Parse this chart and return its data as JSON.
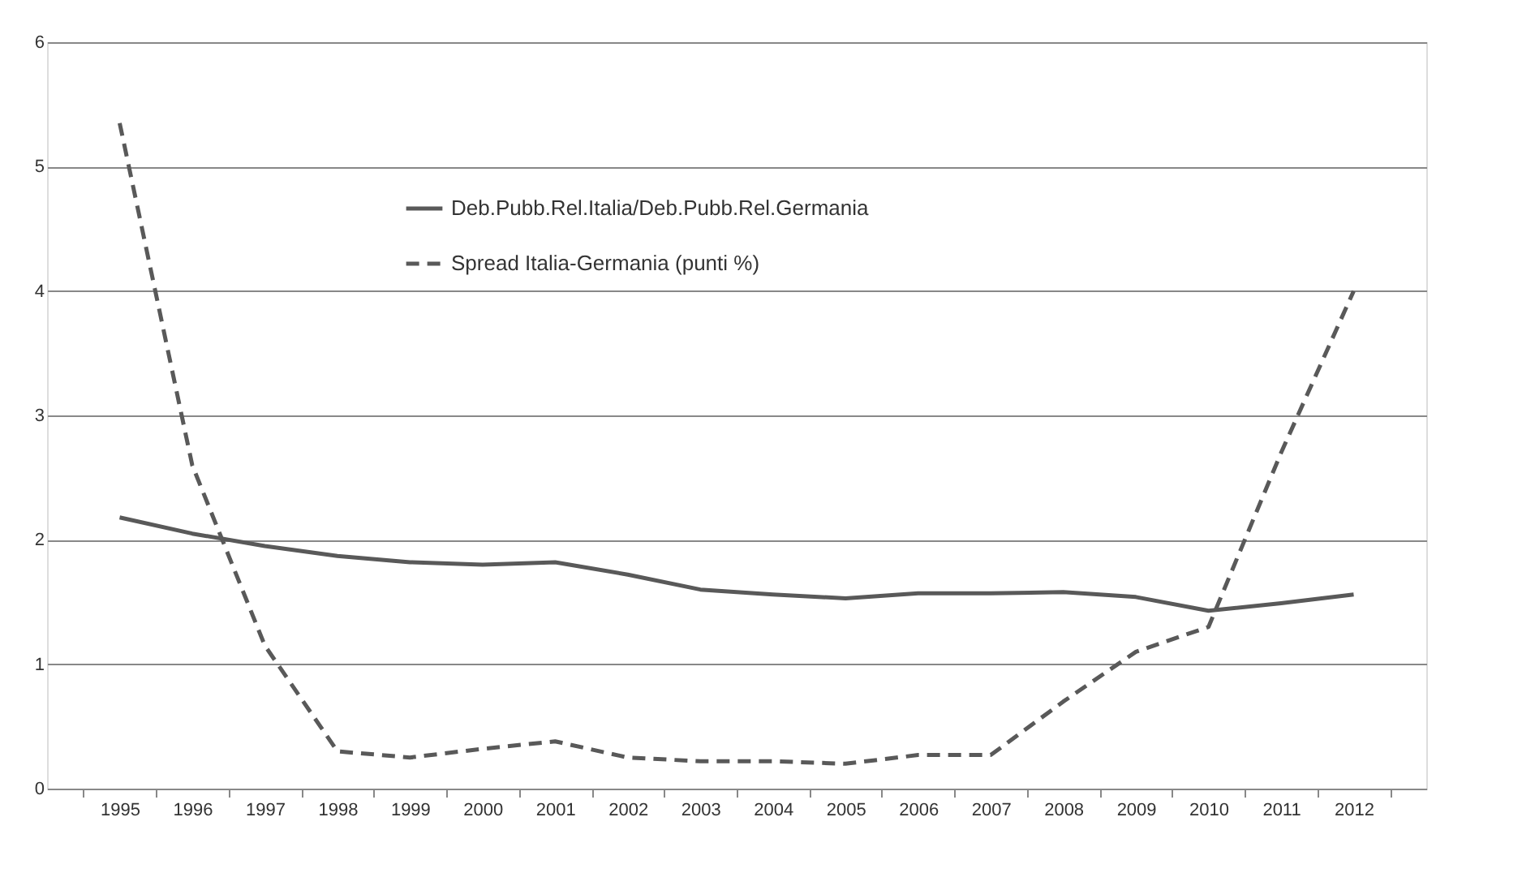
{
  "chart_data": {
    "type": "line",
    "categories": [
      "1995",
      "1996",
      "1997",
      "1998",
      "1999",
      "2000",
      "2001",
      "2002",
      "2003",
      "2004",
      "2005",
      "2006",
      "2007",
      "2008",
      "2009",
      "2010",
      "2011",
      "2012"
    ],
    "series": [
      {
        "name": "Deb.Pubb.Rel.Italia/Deb.Pubb.Rel.Germania",
        "color": "#595959",
        "line_style": "solid",
        "values": [
          2.18,
          2.05,
          1.95,
          1.87,
          1.82,
          1.8,
          1.82,
          1.72,
          1.6,
          1.56,
          1.53,
          1.57,
          1.57,
          1.58,
          1.54,
          1.43,
          1.49,
          1.56
        ]
      },
      {
        "name": "Spread Italia-Germania (punti %)",
        "color": "#595959",
        "line_style": "dashed",
        "values": [
          5.35,
          2.6,
          1.15,
          0.3,
          0.25,
          0.32,
          0.38,
          0.25,
          0.22,
          0.22,
          0.2,
          0.27,
          0.27,
          0.7,
          1.1,
          1.3,
          2.7,
          4.0
        ]
      }
    ],
    "ylim": [
      0,
      6
    ],
    "yticks": [
      0,
      1,
      2,
      3,
      4,
      5,
      6
    ],
    "grid": "y",
    "legend": "top",
    "marker": "none"
  }
}
